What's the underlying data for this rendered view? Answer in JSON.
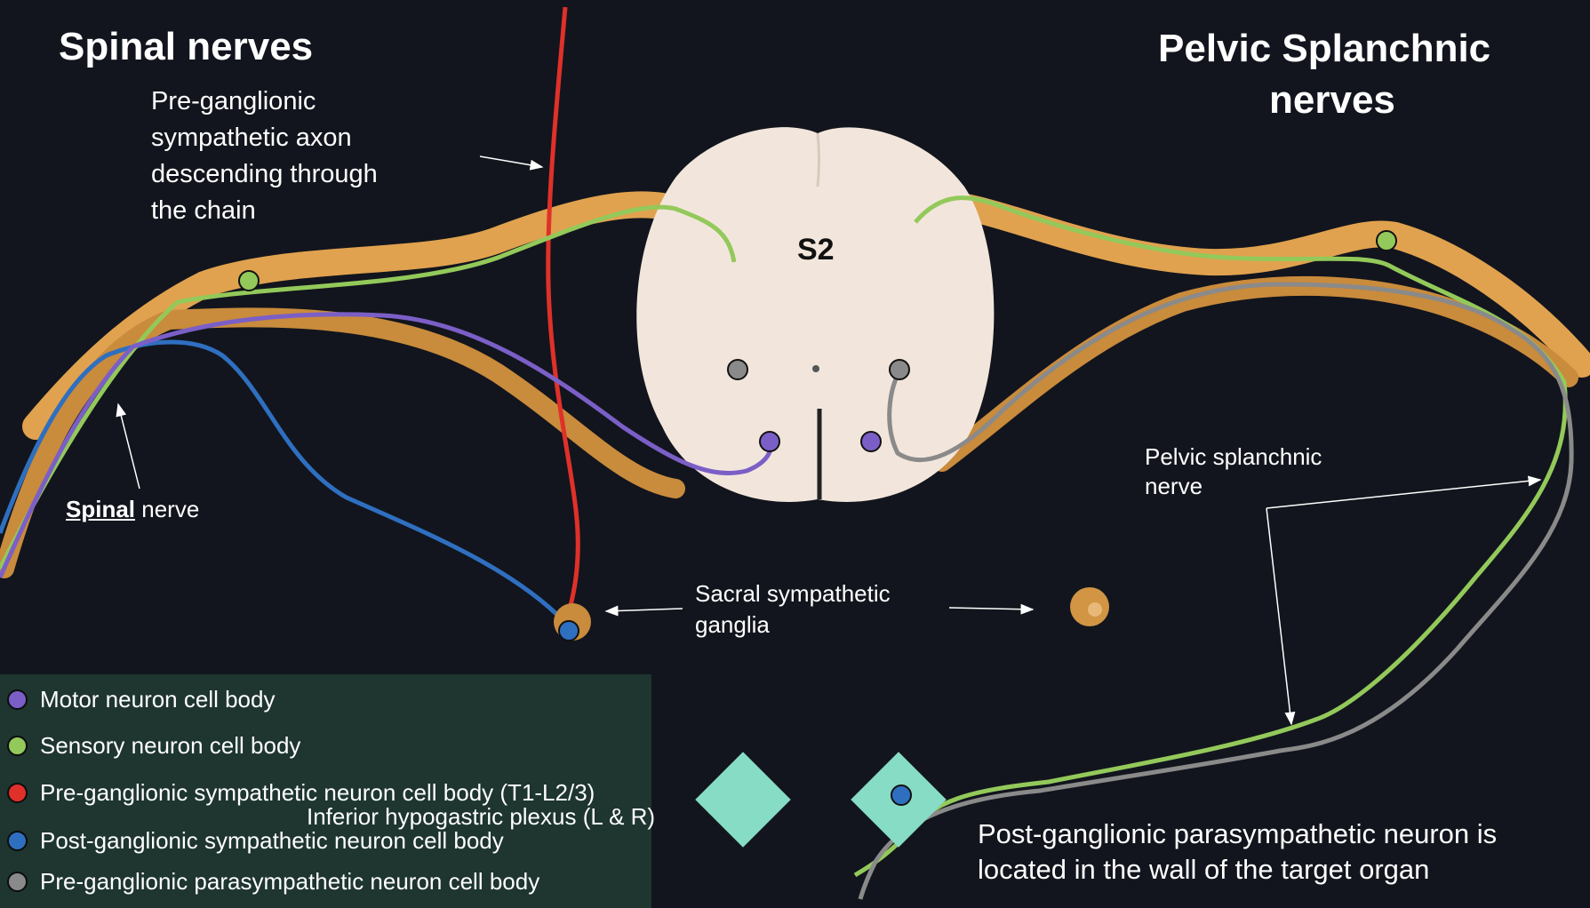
{
  "headings": {
    "left": "Spinal nerves",
    "right_line1": "Pelvic Splanchnic",
    "right_line2": "nerves"
  },
  "spinal_segment_label": "S2",
  "annotations": {
    "preganglionic_axon": [
      "Pre-ganglionic",
      "sympathetic axon",
      "descending through",
      "the chain"
    ],
    "spinal_nerve_emph": "Spinal",
    "spinal_nerve_rest": " nerve",
    "sacral_ganglia": [
      "Sacral sympathetic",
      "ganglia"
    ],
    "pelvic_splanchnic": [
      "Pelvic splanchnic",
      "nerve"
    ],
    "inferior_plexus": "Inferior hypogastric plexus (L & R)",
    "post_ganglionic_note": [
      "Post-ganglionic parasympathetic neuron is",
      "located in the wall of the target organ"
    ]
  },
  "legend": [
    {
      "label": "Motor neuron cell body",
      "color": "#7b5fc7"
    },
    {
      "label": "Sensory neuron cell body",
      "color": "#93c95a"
    },
    {
      "label": "Pre-ganglionic sympathetic neuron cell body (T1-L2/3)",
      "color": "#e0302a"
    },
    {
      "label": "Post-ganglionic sympathetic neuron cell body",
      "color": "#2f6fc0"
    },
    {
      "label": "Pre-ganglionic parasympathetic neuron cell body",
      "color": "#8a8a8a"
    }
  ],
  "colors": {
    "background": "#12151d",
    "nerve": "#e0a24f",
    "spinal_cord": "#f2e6dc",
    "motor": "#7b5fc7",
    "sensory": "#93c95a",
    "preganglionic_sympathetic": "#e0302a",
    "postganglionic_sympathetic": "#2f6fc0",
    "preganglionic_parasympathetic": "#8a8a8a",
    "plexus": "#86dcc4",
    "legend_bg": "#1e3530"
  }
}
